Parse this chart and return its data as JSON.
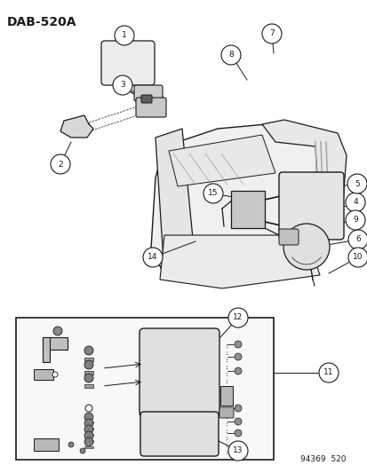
{
  "title": "DAB-520A",
  "footer": "94369  520",
  "bg_color": "#ffffff",
  "line_color": "#1a1a1a",
  "title_fontsize": 10,
  "callout_r": 0.022
}
